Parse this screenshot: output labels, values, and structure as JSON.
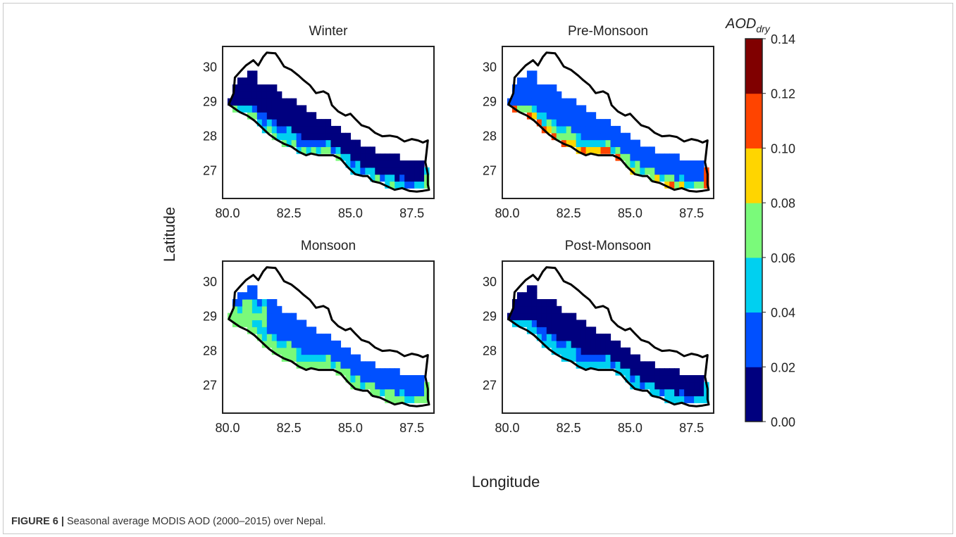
{
  "caption": {
    "label": "FIGURE 6 |",
    "text": "Seasonal average MODIS AOD (2000–2015) over Nepal."
  },
  "colors": {
    "outline": "#000000",
    "frame": "#222222",
    "bins": [
      "#00007f",
      "#0050ff",
      "#00d0f0",
      "#7afa7a",
      "#ffd500",
      "#ff4400",
      "#800000"
    ]
  },
  "chart_data": {
    "type": "heatmap",
    "xlabel": "Longitude",
    "ylabel": "Latitude",
    "xlim": [
      79.8,
      88.4
    ],
    "ylim": [
      26.2,
      30.6
    ],
    "x_ticks": [
      "80.0",
      "82.5",
      "85.0",
      "87.5"
    ],
    "y_ticks": [
      "30",
      "29",
      "28",
      "27"
    ],
    "colorbar": {
      "label_main": "AOD",
      "label_sub": "dry",
      "range": [
        0.0,
        0.14
      ],
      "boundaries": [
        0.0,
        0.02,
        0.04,
        0.06,
        0.08,
        0.1,
        0.12,
        0.14
      ],
      "tick_labels": [
        "0.00",
        "0.02",
        "0.04",
        "0.06",
        "0.08",
        "0.10",
        "0.12",
        "0.14"
      ]
    },
    "panels": [
      {
        "title": "Winter",
        "dominant_range": [
          0.0,
          0.02
        ],
        "edge_range": [
          0.04,
          0.08
        ]
      },
      {
        "title": "Pre-Monsoon",
        "dominant_range": [
          0.02,
          0.04
        ],
        "edge_range": [
          0.06,
          0.12
        ]
      },
      {
        "title": "Monsoon",
        "dominant_range": [
          0.02,
          0.04
        ],
        "edge_range": [
          0.06,
          0.08
        ]
      },
      {
        "title": "Post-Monsoon",
        "dominant_range": [
          0.0,
          0.02
        ],
        "edge_range": [
          0.04,
          0.06
        ]
      }
    ]
  }
}
